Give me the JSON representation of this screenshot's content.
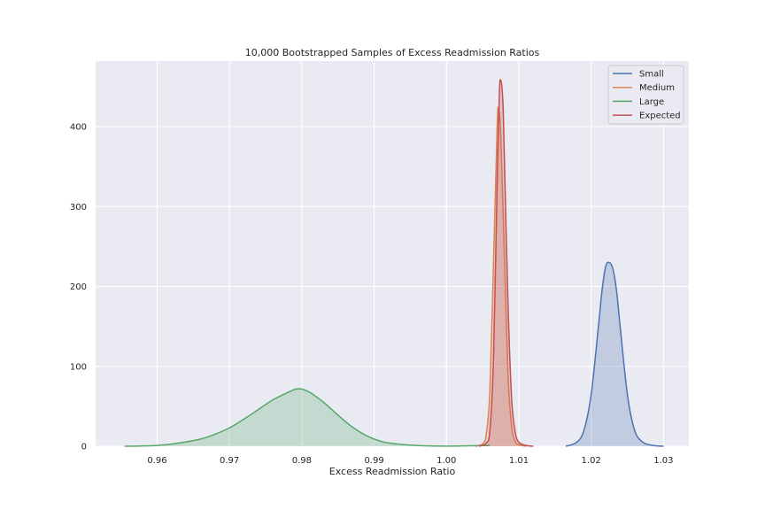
{
  "chart_data": {
    "type": "area",
    "title": "10,000 Bootstrapped Samples of Excess Readmission Ratios",
    "xlabel": "Excess Readmission Ratio",
    "ylabel": "",
    "xlim": [
      0.9515,
      1.0335
    ],
    "ylim": [
      0,
      482
    ],
    "xticks": [
      0.96,
      0.97,
      0.98,
      0.99,
      1.0,
      1.01,
      1.02,
      1.03
    ],
    "xtick_labels": [
      "0.96",
      "0.97",
      "0.98",
      "0.99",
      "1.00",
      "1.01",
      "1.02",
      "1.03"
    ],
    "yticks": [
      0,
      100,
      200,
      300,
      400
    ],
    "ytick_labels": [
      "0",
      "100",
      "200",
      "300",
      "400"
    ],
    "grid": true,
    "legend_position": "top-right",
    "series": [
      {
        "name": "Small",
        "color": "#4c72b0",
        "x": [
          1.0165,
          1.018,
          1.019,
          1.02,
          1.021,
          1.0215,
          1.022,
          1.0225,
          1.023,
          1.0235,
          1.024,
          1.025,
          1.026,
          1.027,
          1.028,
          1.029,
          1.03
        ],
        "y": [
          0,
          5,
          20,
          65,
          150,
          195,
          225,
          230,
          222,
          195,
          150,
          65,
          20,
          6,
          2,
          0.5,
          0
        ]
      },
      {
        "name": "Medium",
        "color": "#dd8452",
        "x": [
          1.004,
          1.005,
          1.0055,
          1.006,
          1.0065,
          1.007,
          1.0072,
          1.0075,
          1.008,
          1.0085,
          1.009,
          1.0095,
          1.01,
          1.011
        ],
        "y": [
          0,
          3,
          15,
          70,
          230,
          400,
          422,
          390,
          240,
          90,
          25,
          6,
          2,
          0
        ]
      },
      {
        "name": "Large",
        "color": "#55a868",
        "x": [
          0.9555,
          0.96,
          0.963,
          0.966,
          0.968,
          0.97,
          0.972,
          0.974,
          0.976,
          0.978,
          0.9795,
          0.981,
          0.983,
          0.985,
          0.987,
          0.989,
          0.991,
          0.993,
          0.995,
          0.997,
          1.0,
          1.003,
          1.006
        ],
        "y": [
          0,
          1,
          4,
          9,
          15,
          23,
          34,
          46,
          58,
          67,
          72,
          68,
          55,
          39,
          24,
          13,
          6,
          3,
          1.5,
          0.5,
          0.1,
          0.5,
          1
        ]
      },
      {
        "name": "Expected",
        "color": "#c44e52",
        "x": [
          1.0045,
          1.0055,
          1.006,
          1.0065,
          1.007,
          1.0073,
          1.0075,
          1.0078,
          1.008,
          1.0085,
          1.009,
          1.0095,
          1.01,
          1.011,
          1.012
        ],
        "y": [
          0,
          4,
          20,
          110,
          330,
          440,
          458,
          430,
          360,
          180,
          60,
          18,
          5,
          1,
          0
        ]
      }
    ]
  }
}
